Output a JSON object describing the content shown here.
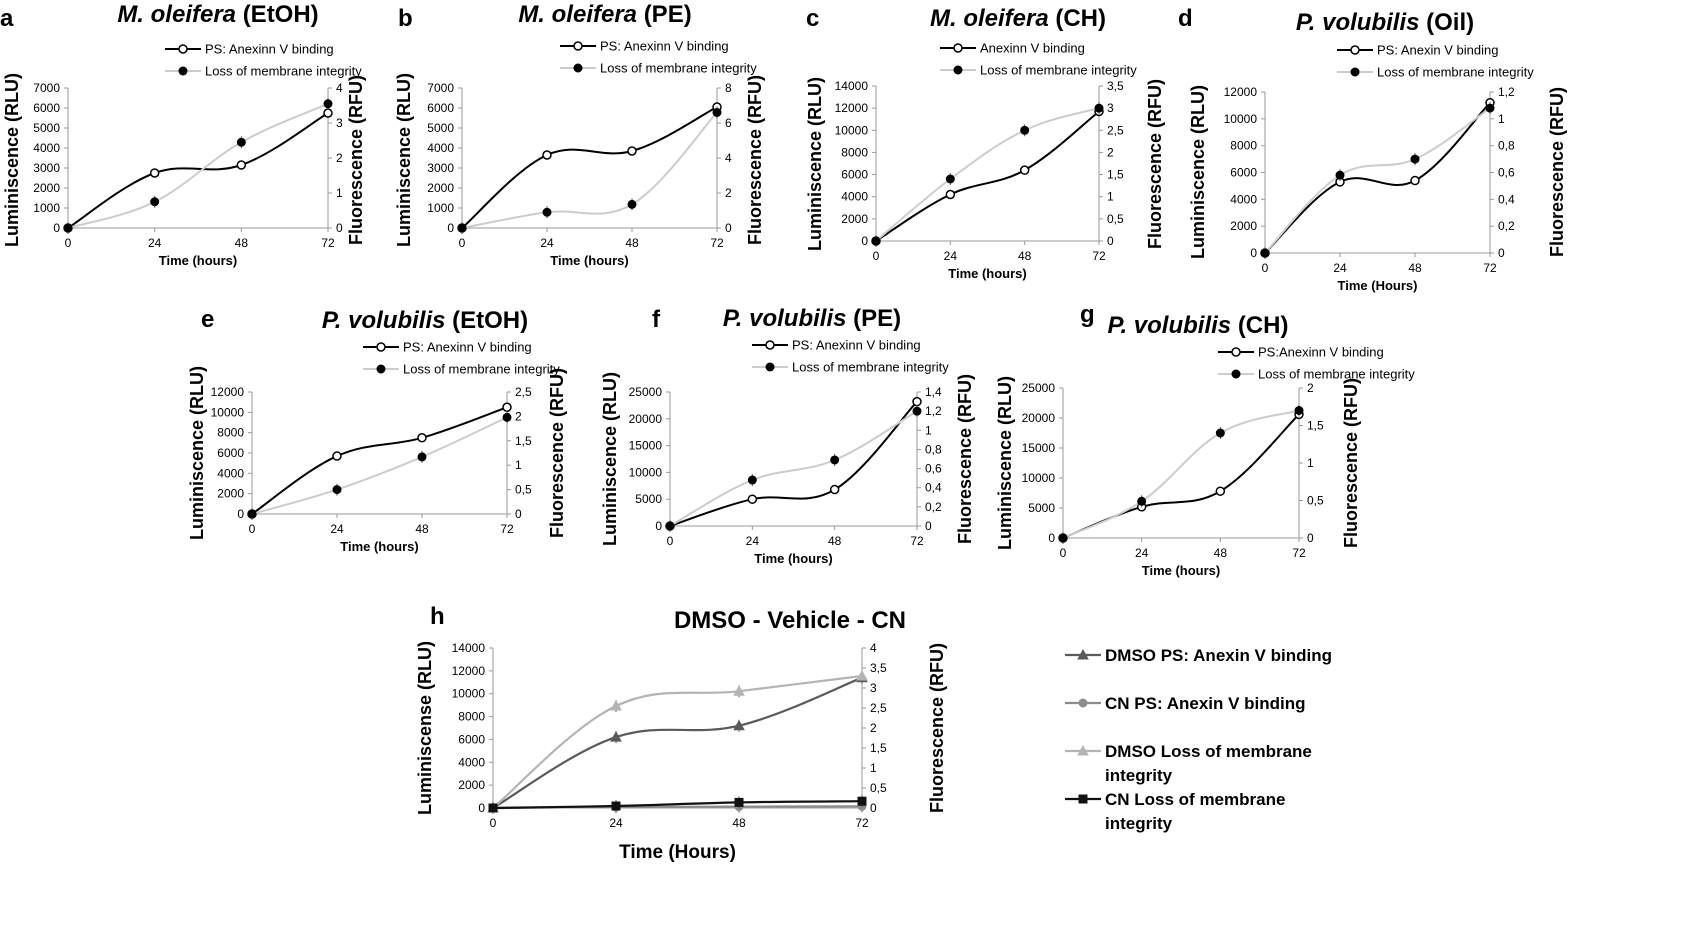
{
  "chart_data": [
    {
      "letter": "a",
      "type": "line",
      "title_species": "M. oleifera",
      "title_extract": "(EtOH)",
      "xlabel": "Time (hours)",
      "ylabel": "Luminiscence (RLU)",
      "y2label": "Fluorescence (RFU)",
      "x": [
        0,
        24,
        48,
        72
      ],
      "x_ticks": [
        "0",
        "24",
        "48",
        "72"
      ],
      "ylim": [
        0,
        7000
      ],
      "y_ticks": [
        "0",
        "1000",
        "2000",
        "3000",
        "4000",
        "5000",
        "6000",
        "7000"
      ],
      "y2lim": [
        0,
        4
      ],
      "y2_ticks": [
        "0",
        "1",
        "2",
        "3",
        "4"
      ],
      "series": [
        {
          "name": "PS: Anexinn V binding",
          "axis": "left",
          "marker": "open-circle",
          "color": "#000000",
          "values": [
            0,
            2750,
            3150,
            5750
          ]
        },
        {
          "name": "Loss of membrane integrity",
          "axis": "right",
          "marker": "filled-circle",
          "color": "#c8c8c8",
          "values": [
            0,
            0.75,
            2.45,
            3.55
          ]
        }
      ]
    },
    {
      "letter": "b",
      "type": "line",
      "title_species": "M. oleifera",
      "title_extract": "(PE)",
      "xlabel": "Time (hours)",
      "ylabel": "Luminiscence (RLU)",
      "y2label": "Fluorescence (RFU)",
      "x": [
        0,
        24,
        48,
        72
      ],
      "x_ticks": [
        "0",
        "24",
        "48",
        "72"
      ],
      "ylim": [
        0,
        7000
      ],
      "y_ticks": [
        "0",
        "1000",
        "2000",
        "3000",
        "4000",
        "5000",
        "6000",
        "7000"
      ],
      "y2lim": [
        0,
        8
      ],
      "y2_ticks": [
        "0",
        "2",
        "4",
        "6",
        "8"
      ],
      "series": [
        {
          "name": "PS: Anexinn V binding",
          "axis": "left",
          "marker": "open-circle",
          "color": "#000000",
          "values": [
            0,
            3650,
            3850,
            6050
          ]
        },
        {
          "name": "Loss of membrane integrity",
          "axis": "right",
          "marker": "filled-circle",
          "color": "#c8c8c8",
          "values": [
            0,
            0.9,
            1.35,
            6.6
          ]
        }
      ]
    },
    {
      "letter": "c",
      "type": "line",
      "title_species": "M. oleifera",
      "title_extract": "(CH)",
      "xlabel": "Time (hours)",
      "ylabel": "Luminiscence (RLU)",
      "y2label": "Fluorescence (RFU)",
      "x": [
        0,
        24,
        48,
        72
      ],
      "x_ticks": [
        "0",
        "24",
        "48",
        "72"
      ],
      "ylim": [
        0,
        14000
      ],
      "y_ticks": [
        "0",
        "2000",
        "4000",
        "6000",
        "8000",
        "10000",
        "12000",
        "14000"
      ],
      "y2lim": [
        0,
        3.5
      ],
      "y2_ticks": [
        "0",
        "0,5",
        "1",
        "1,5",
        "2",
        "2,5",
        "3",
        "3,5"
      ],
      "series": [
        {
          "name": "Anexinn V binding",
          "axis": "left",
          "marker": "open-circle",
          "color": "#000000",
          "values": [
            0,
            4200,
            6400,
            11700
          ]
        },
        {
          "name": "Loss of membrane integrity",
          "axis": "right",
          "marker": "filled-circle",
          "color": "#c8c8c8",
          "values": [
            0,
            1.4,
            2.5,
            3.0
          ]
        }
      ]
    },
    {
      "letter": "d",
      "type": "line",
      "title_species": "P. volubilis",
      "title_extract": "(Oil)",
      "xlabel": "Time (Hours)",
      "ylabel": "Luminiscence (RLU)",
      "y2label": "Fluorescence (RFU)",
      "x": [
        0,
        24,
        48,
        72
      ],
      "x_ticks": [
        "0",
        "24",
        "48",
        "72"
      ],
      "ylim": [
        0,
        12000
      ],
      "y_ticks": [
        "0",
        "2000",
        "4000",
        "6000",
        "8000",
        "10000",
        "12000"
      ],
      "y2lim": [
        0,
        1.2
      ],
      "y2_ticks": [
        "0",
        "0,2",
        "0,4",
        "0,6",
        "0,8",
        "1",
        "1,2"
      ],
      "series": [
        {
          "name": "PS: Anexin V binding",
          "axis": "left",
          "marker": "open-circle",
          "color": "#000000",
          "values": [
            0,
            5300,
            5400,
            11200
          ]
        },
        {
          "name": "Loss of membrane integrity",
          "axis": "right",
          "marker": "filled-circle",
          "color": "#c8c8c8",
          "values": [
            0,
            0.58,
            0.7,
            1.08
          ]
        }
      ]
    },
    {
      "letter": "e",
      "type": "line",
      "title_species": "P. volubilis",
      "title_extract": "(EtOH)",
      "xlabel": "Time (hours)",
      "ylabel": "Luminiscence (RLU)",
      "y2label": "Fluorescence (RFU)",
      "x": [
        0,
        24,
        48,
        72
      ],
      "x_ticks": [
        "0",
        "24",
        "48",
        "72"
      ],
      "ylim": [
        0,
        12000
      ],
      "y_ticks": [
        "0",
        "2000",
        "4000",
        "6000",
        "8000",
        "10000",
        "12000"
      ],
      "y2lim": [
        0,
        2.5
      ],
      "y2_ticks": [
        "0",
        "0,5",
        "1",
        "1,5",
        "2",
        "2,5"
      ],
      "series": [
        {
          "name": "PS: Anexinn V binding",
          "axis": "left",
          "marker": "open-circle",
          "color": "#000000",
          "values": [
            0,
            5700,
            7500,
            10500
          ]
        },
        {
          "name": "Loss of membrane integrity",
          "axis": "right",
          "marker": "filled-circle",
          "color": "#c8c8c8",
          "values": [
            0,
            0.5,
            1.17,
            1.98
          ]
        }
      ]
    },
    {
      "letter": "f",
      "type": "line",
      "title_species": "P. volubilis",
      "title_extract": "(PE)",
      "xlabel": "Time (hours)",
      "ylabel": "Luminiscence (RLU)",
      "y2label": "Fluorescence (RFU)",
      "x": [
        0,
        24,
        48,
        72
      ],
      "x_ticks": [
        "0",
        "24",
        "48",
        "72"
      ],
      "ylim": [
        0,
        25000
      ],
      "y_ticks": [
        "0",
        "5000",
        "10000",
        "15000",
        "20000",
        "25000"
      ],
      "y2lim": [
        0,
        1.4
      ],
      "y2_ticks": [
        "0",
        "0,2",
        "0,4",
        "0,6",
        "0,8",
        "1",
        "1,2",
        "1,4"
      ],
      "series": [
        {
          "name": "PS: Anexinn V binding",
          "axis": "left",
          "marker": "open-circle",
          "color": "#000000",
          "values": [
            0,
            5000,
            6800,
            23200
          ]
        },
        {
          "name": "Loss of membrane integrity",
          "axis": "right",
          "marker": "filled-circle",
          "color": "#c8c8c8",
          "values": [
            0,
            0.48,
            0.69,
            1.2
          ]
        }
      ]
    },
    {
      "letter": "g",
      "type": "line",
      "title_species": "P. volubilis",
      "title_extract": "(CH)",
      "xlabel": "Time (hours)",
      "ylabel": "Luminiscence (RLU)",
      "y2label": "Fluorescence (RFU)",
      "x": [
        0,
        24,
        48,
        72
      ],
      "x_ticks": [
        "0",
        "24",
        "48",
        "72"
      ],
      "ylim": [
        0,
        25000
      ],
      "y_ticks": [
        "0",
        "5000",
        "10000",
        "15000",
        "20000",
        "25000"
      ],
      "y2lim": [
        0,
        2
      ],
      "y2_ticks": [
        "0",
        "0,5",
        "1",
        "1,5",
        "2"
      ],
      "series": [
        {
          "name": "PS:Anexinn V binding",
          "axis": "left",
          "marker": "open-circle",
          "color": "#000000",
          "values": [
            0,
            5200,
            7800,
            20600
          ]
        },
        {
          "name": "Loss of membrane integrity",
          "axis": "right",
          "marker": "filled-circle",
          "color": "#c8c8c8",
          "values": [
            0,
            0.49,
            1.4,
            1.7
          ]
        }
      ]
    },
    {
      "letter": "h",
      "type": "line",
      "title_species": "",
      "title_extract": "DMSO -  Vehicle - CN",
      "xlabel": "Time (Hours)",
      "ylabel": "Luminiscense (RLU)",
      "y2label": "Fluorescence (RFU)",
      "x": [
        0,
        24,
        48,
        72
      ],
      "x_ticks": [
        "0",
        "24",
        "48",
        "72"
      ],
      "ylim": [
        0,
        14000
      ],
      "y_ticks": [
        "0",
        "2000",
        "4000",
        "6000",
        "8000",
        "10000",
        "12000",
        "14000"
      ],
      "y2lim": [
        0,
        4
      ],
      "y2_ticks": [
        "0",
        "0,5",
        "1",
        "1,5",
        "2",
        "2,5",
        "3",
        "3,5",
        "4"
      ],
      "series": [
        {
          "name": "DMSO PS: Anexin V binding",
          "axis": "left",
          "marker": "triangle",
          "color": "#5a5a5a",
          "values": [
            0,
            6200,
            7200,
            11400
          ]
        },
        {
          "name": "CN PS: Anexin V binding",
          "axis": "left",
          "marker": "circle",
          "color": "#8c8c8c",
          "values": [
            0,
            80,
            120,
            150
          ]
        },
        {
          "name": "DMSO Loss of membrane integrity",
          "axis": "right",
          "marker": "triangle",
          "color": "#b4b4b4",
          "values": [
            0,
            2.55,
            2.92,
            3.3
          ]
        },
        {
          "name": "CN Loss of membrane integrity",
          "axis": "right",
          "marker": "square",
          "color": "#111111",
          "values": [
            0,
            0.05,
            0.14,
            0.17
          ]
        }
      ]
    }
  ]
}
